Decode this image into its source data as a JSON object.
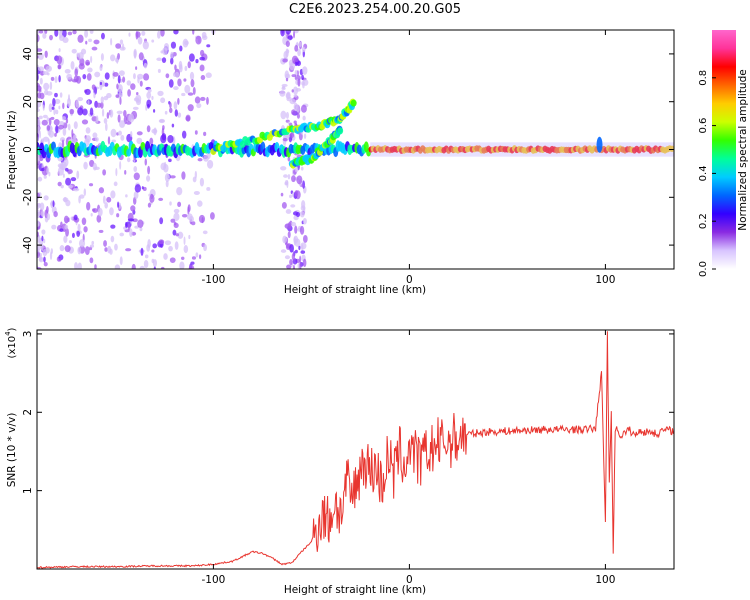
{
  "figure": {
    "title": "C2E6.2023.254.00.20.G05"
  },
  "chart_data": [
    {
      "type": "heatmap",
      "name": "spectrogram",
      "xlabel": "Height of straight line (km)",
      "ylabel": "Frequency (Hz)",
      "xlim": [
        -190,
        135
      ],
      "ylim": [
        -50,
        50
      ],
      "xticks": [
        -100,
        0,
        100
      ],
      "yticks": [
        -40,
        -20,
        0,
        20,
        40
      ],
      "colorbar": {
        "label": "Normalized spectral amplitude",
        "range": [
          0,
          1
        ],
        "ticks": [
          0.0,
          0.2,
          0.4,
          0.6,
          0.8
        ],
        "colors": [
          "#ffffff",
          "#d8c4ff",
          "#8a2be2",
          "#3300ff",
          "#0066ff",
          "#00ccff",
          "#00ff99",
          "#33ff00",
          "#ccff00",
          "#ffcc00",
          "#ff6600",
          "#ff0000",
          "#ff3399",
          "#ff66cc"
        ]
      },
      "features": {
        "carrier_line": {
          "x": [
            -190,
            135
          ],
          "freq": 0,
          "note": "strongest along 0 Hz for x > -20"
        },
        "diagonal_band": [
          [
            -100,
            0
          ],
          [
            -80,
            4
          ],
          [
            -60,
            8
          ],
          [
            -45,
            10
          ],
          [
            -35,
            13
          ],
          [
            -28,
            20
          ]
        ],
        "secondary_band": [
          [
            -60,
            -6
          ],
          [
            -50,
            -4
          ],
          [
            -40,
            4
          ],
          [
            -35,
            8
          ]
        ],
        "spike_at_km": 97
      }
    },
    {
      "type": "line",
      "name": "snr",
      "xlabel": "Height of straight line (km)",
      "ylabel": "SNR (10 * v/v)",
      "multiplier": "(x10",
      "multiplier_exp": "4",
      "xlim": [
        -190,
        135
      ],
      "ylim": [
        0,
        3.05
      ],
      "xticks": [
        -100,
        0,
        100
      ],
      "yticks": [
        1,
        2,
        3
      ],
      "color": "#e8352f",
      "series": [
        {
          "x": [
            -190,
            -170,
            -150,
            -130,
            -110,
            -100,
            -90,
            -85,
            -80,
            -75,
            -70,
            -65,
            -60,
            -55,
            -50,
            -47,
            -44,
            -41,
            -38,
            -35,
            -32,
            -29,
            -26,
            -23,
            -20,
            -17,
            -14,
            -11,
            -8,
            -5,
            -2,
            0,
            5,
            10,
            15,
            20,
            25,
            30,
            40,
            50,
            60,
            70,
            80,
            90,
            95,
            98,
            100,
            101,
            102,
            103,
            104,
            105,
            108,
            112,
            115,
            118,
            120,
            123,
            126,
            130,
            135
          ],
          "y": [
            0.02,
            0.03,
            0.03,
            0.04,
            0.04,
            0.06,
            0.1,
            0.16,
            0.22,
            0.2,
            0.14,
            0.06,
            0.08,
            0.22,
            0.35,
            0.55,
            0.7,
            0.6,
            0.85,
            0.7,
            1.1,
            0.9,
            1.2,
            1.4,
            1.25,
            1.3,
            1.05,
            1.45,
            1.2,
            1.5,
            1.3,
            1.6,
            1.35,
            1.5,
            1.6,
            1.62,
            1.68,
            1.72,
            1.75,
            1.76,
            1.77,
            1.78,
            1.78,
            1.78,
            1.8,
            2.5,
            0.6,
            3.0,
            1.1,
            2.0,
            0.2,
            1.8,
            1.7,
            1.78,
            1.7,
            1.78,
            1.74,
            1.76,
            1.72,
            1.78,
            1.76
          ]
        }
      ]
    }
  ]
}
